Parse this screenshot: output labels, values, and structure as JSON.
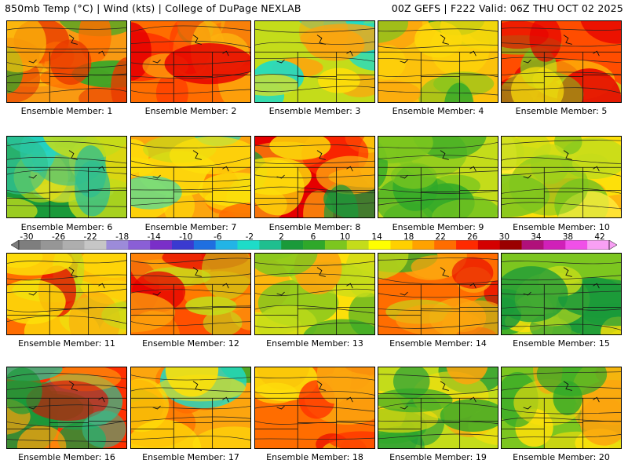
{
  "header": {
    "left": "850mb Temp (°C) | Wind (kts) | College of DuPage NEXLAB",
    "right": "00Z GEFS | F222 Valid: 06Z THU OCT 02 2025"
  },
  "colorbar": {
    "ticks": [
      "-30",
      "-26",
      "-22",
      "-18",
      "-14",
      "-10",
      "-6",
      "-2",
      "2",
      "6",
      "10",
      "14",
      "18",
      "22",
      "26",
      "30",
      "34",
      "38",
      "42"
    ],
    "colors": [
      "#7e7e7e",
      "#969696",
      "#aeaeae",
      "#c6c6c6",
      "#9c8bd9",
      "#8a5fd6",
      "#7a2fc8",
      "#3a3ad0",
      "#1f6fe0",
      "#22b4e6",
      "#1ddcc8",
      "#1fbf8f",
      "#1a9a3a",
      "#2fa82a",
      "#7cc61f",
      "#c4dc1a",
      "#ffff00",
      "#ffd000",
      "#ffa200",
      "#ff6d00",
      "#ff2a00",
      "#d40000",
      "#9a0000",
      "#b0107a",
      "#d020b8",
      "#f050e8",
      "#f8a0f4"
    ]
  },
  "members": [
    {
      "label": "Ensemble Member: 1",
      "palette": [
        "#f99a12",
        "#fdc40c",
        "#2fa82a",
        "#ff6d00",
        "#e83a00"
      ]
    },
    {
      "label": "Ensemble Member: 2",
      "palette": [
        "#ff6d00",
        "#ff3000",
        "#fcb20e",
        "#7cc61f",
        "#e60000"
      ]
    },
    {
      "label": "Ensemble Member: 3",
      "palette": [
        "#c4dc1a",
        "#1ddcc8",
        "#1a9a3a",
        "#fde00a",
        "#fca50e"
      ]
    },
    {
      "label": "Ensemble Member: 4",
      "palette": [
        "#fcc20c",
        "#7cc61f",
        "#2fa82a",
        "#fdd90a",
        "#fca50e"
      ]
    },
    {
      "label": "Ensemble Member: 5",
      "palette": [
        "#ff4d00",
        "#e60000",
        "#c4dc1a",
        "#7cc61f",
        "#fde00a"
      ]
    },
    {
      "label": "Ensemble Member: 6",
      "palette": [
        "#1a9a3a",
        "#2fbf8f",
        "#22d4c8",
        "#c4dc1a",
        "#fde00a"
      ]
    },
    {
      "label": "Ensemble Member: 7",
      "palette": [
        "#fca50e",
        "#ff6d00",
        "#fde00a",
        "#c4dc1a",
        "#1ddcc8"
      ]
    },
    {
      "label": "Ensemble Member: 8",
      "palette": [
        "#e60000",
        "#ff3000",
        "#fca50e",
        "#1a9a3a",
        "#fde00a"
      ]
    },
    {
      "label": "Ensemble Member: 9",
      "palette": [
        "#c4dc1a",
        "#fde00a",
        "#7cc61f",
        "#2fa82a",
        "#fca50e"
      ]
    },
    {
      "label": "Ensemble Member: 10",
      "palette": [
        "#fde00a",
        "#c4dc1a",
        "#fca50e",
        "#7cc61f",
        "#ffee40"
      ]
    },
    {
      "label": "Ensemble Member: 11",
      "palette": [
        "#ff6d00",
        "#e60000",
        "#fca50e",
        "#c4dc1a",
        "#fde00a"
      ]
    },
    {
      "label": "Ensemble Member: 12",
      "palette": [
        "#ff5000",
        "#e60000",
        "#ff8a00",
        "#c4dc1a",
        "#fca50e"
      ]
    },
    {
      "label": "Ensemble Member: 13",
      "palette": [
        "#fde00a",
        "#c4dc1a",
        "#7cc61f",
        "#fca50e",
        "#2fa82a"
      ]
    },
    {
      "label": "Ensemble Member: 14",
      "palette": [
        "#ff6d00",
        "#e60000",
        "#fca50e",
        "#2fa82a",
        "#c4dc1a"
      ]
    },
    {
      "label": "Ensemble Member: 15",
      "palette": [
        "#7cc61f",
        "#2fa82a",
        "#c4dc1a",
        "#fde00a",
        "#1a9a3a"
      ]
    },
    {
      "label": "Ensemble Member: 16",
      "palette": [
        "#ff3000",
        "#e60000",
        "#1a9a3a",
        "#fca50e",
        "#2fbf8f"
      ]
    },
    {
      "label": "Ensemble Member: 17",
      "palette": [
        "#fca50e",
        "#ff6d00",
        "#2fa82a",
        "#fde00a",
        "#1ddcc8"
      ]
    },
    {
      "label": "Ensemble Member: 18",
      "palette": [
        "#ff6d00",
        "#ff3000",
        "#fca50e",
        "#fde00a",
        "#e60000"
      ]
    },
    {
      "label": "Ensemble Member: 19",
      "palette": [
        "#c4dc1a",
        "#2fa82a",
        "#1a9a3a",
        "#fde00a",
        "#fca50e"
      ]
    },
    {
      "label": "Ensemble Member: 20",
      "palette": [
        "#7cc61f",
        "#2fa82a",
        "#1ddcc8",
        "#fde00a",
        "#fca50e"
      ]
    }
  ]
}
